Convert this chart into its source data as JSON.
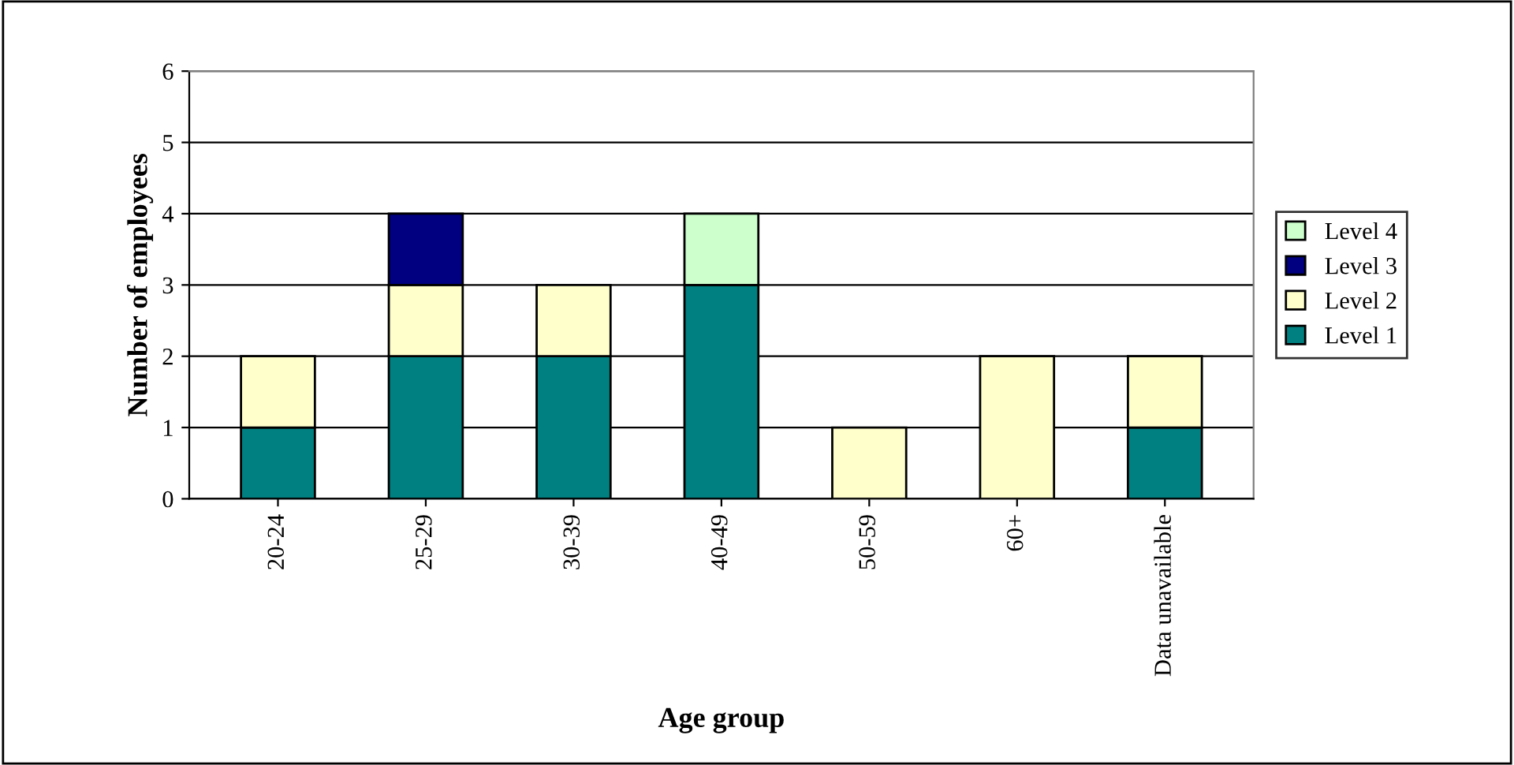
{
  "chart_data": {
    "type": "bar",
    "stacked": true,
    "xlabel": "Age group",
    "ylabel": "Number of employees",
    "categories": [
      "20-24",
      "25-29",
      "30-39",
      "40-49",
      "50-59",
      "60+",
      "Data unavailable"
    ],
    "series": [
      {
        "name": "Level 1",
        "color": "#008080",
        "values": [
          1,
          2,
          2,
          3,
          0,
          0,
          1
        ]
      },
      {
        "name": "Level 2",
        "color": "#ffffcc",
        "values": [
          1,
          1,
          1,
          0,
          1,
          2,
          1
        ]
      },
      {
        "name": "Level 3",
        "color": "#000080",
        "values": [
          0,
          1,
          0,
          0,
          0,
          0,
          0
        ]
      },
      {
        "name": "Level 4",
        "color": "#ccffcc",
        "values": [
          0,
          0,
          0,
          1,
          0,
          0,
          0
        ]
      }
    ],
    "ylim": [
      0,
      6
    ],
    "yticks": [
      0,
      1,
      2,
      3,
      4,
      5,
      6
    ],
    "grid": "y",
    "legend": "right"
  }
}
